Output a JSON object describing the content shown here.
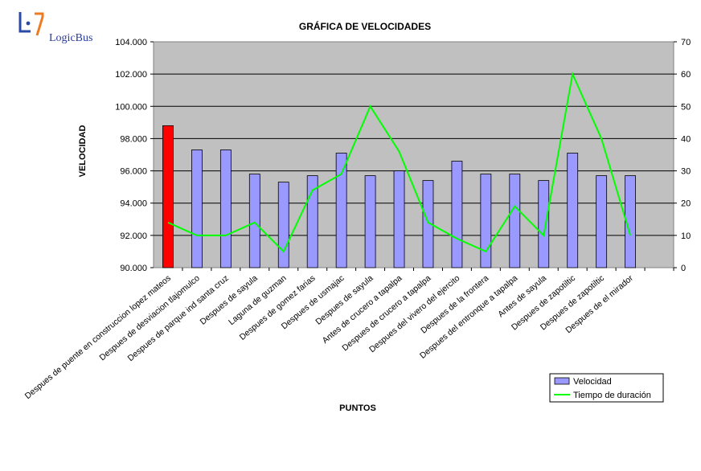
{
  "logo": {
    "name": "LogicBus"
  },
  "chart_data": {
    "type": "bar",
    "title": "GRÁFICA DE VELOCIDADES",
    "xlabel": "PUNTOS",
    "ylabel": "VELOCIDAD",
    "ylim": [
      90,
      104
    ],
    "y2lim": [
      0,
      70
    ],
    "y_ticks": [
      "90.000",
      "92.000",
      "94.000",
      "96.000",
      "98.000",
      "100.000",
      "102.000",
      "104.000"
    ],
    "y2_ticks": [
      "0",
      "10",
      "20",
      "30",
      "40",
      "50",
      "60",
      "70"
    ],
    "categories": [
      "Despues de puente en construccion lopez mateos",
      "Despues de desviacion tlajomulco",
      "Despues de parque ind santa cruz",
      "Despues de sayula",
      "Laguna de guzman",
      "Despues de gomez farias",
      "Despues de usmajac",
      "Despues de sayula",
      "Antes de crucero a tapalpa",
      "Despues de crucero a tapalpa",
      "Despues del vivero del ejercito",
      "Despues de la frontera",
      "Despues del entronque a tapalpa",
      "Antes de sayula",
      "Despues de zapotiltic",
      "Despues de zapotiltic",
      "Despues de el mirador",
      ""
    ],
    "series": [
      {
        "name": "Velocidad",
        "type": "bar",
        "axis": "left",
        "color": "#9999ff",
        "highlight_color": "#ff0000",
        "highlight_index": 0,
        "values": [
          98.8,
          97.3,
          97.3,
          95.8,
          95.3,
          95.7,
          97.1,
          95.7,
          96.0,
          95.4,
          96.6,
          95.8,
          95.8,
          95.4,
          97.1,
          95.7,
          95.7,
          null
        ]
      },
      {
        "name": "Tiempo de duración",
        "type": "line",
        "axis": "right",
        "color": "#00ff00",
        "values": [
          14,
          10,
          10,
          14,
          5,
          24,
          29,
          50,
          36,
          14,
          9,
          5,
          19,
          10,
          60,
          40,
          10,
          null
        ]
      }
    ],
    "legend": "bottom-right",
    "grid": true,
    "plot_background": "#c0c0c0"
  }
}
